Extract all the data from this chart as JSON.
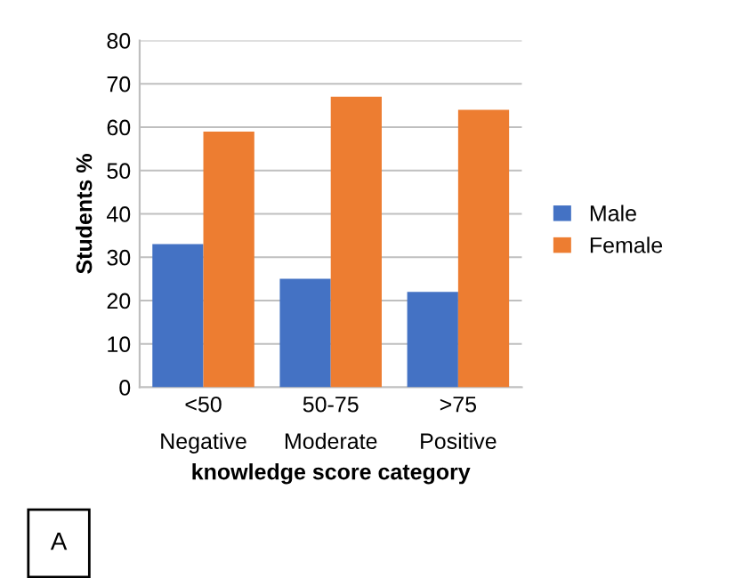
{
  "chart_data": {
    "type": "bar",
    "xlabel": "knowledge score category",
    "ylabel": "Students %",
    "categories": [
      "<50\nNegative",
      "50-75\nModerate",
      ">75\nPositive"
    ],
    "series": [
      {
        "name": "Male",
        "color": "#4472c4",
        "values": [
          33,
          25,
          22
        ]
      },
      {
        "name": "Female",
        "color": "#ed7d31",
        "values": [
          59,
          67,
          64
        ]
      }
    ],
    "ylim": [
      0,
      80
    ],
    "yticks": [
      0,
      10,
      20,
      30,
      40,
      50,
      60,
      70,
      80
    ],
    "grid": "y",
    "legend": "right",
    "annotations": [
      "A"
    ]
  }
}
